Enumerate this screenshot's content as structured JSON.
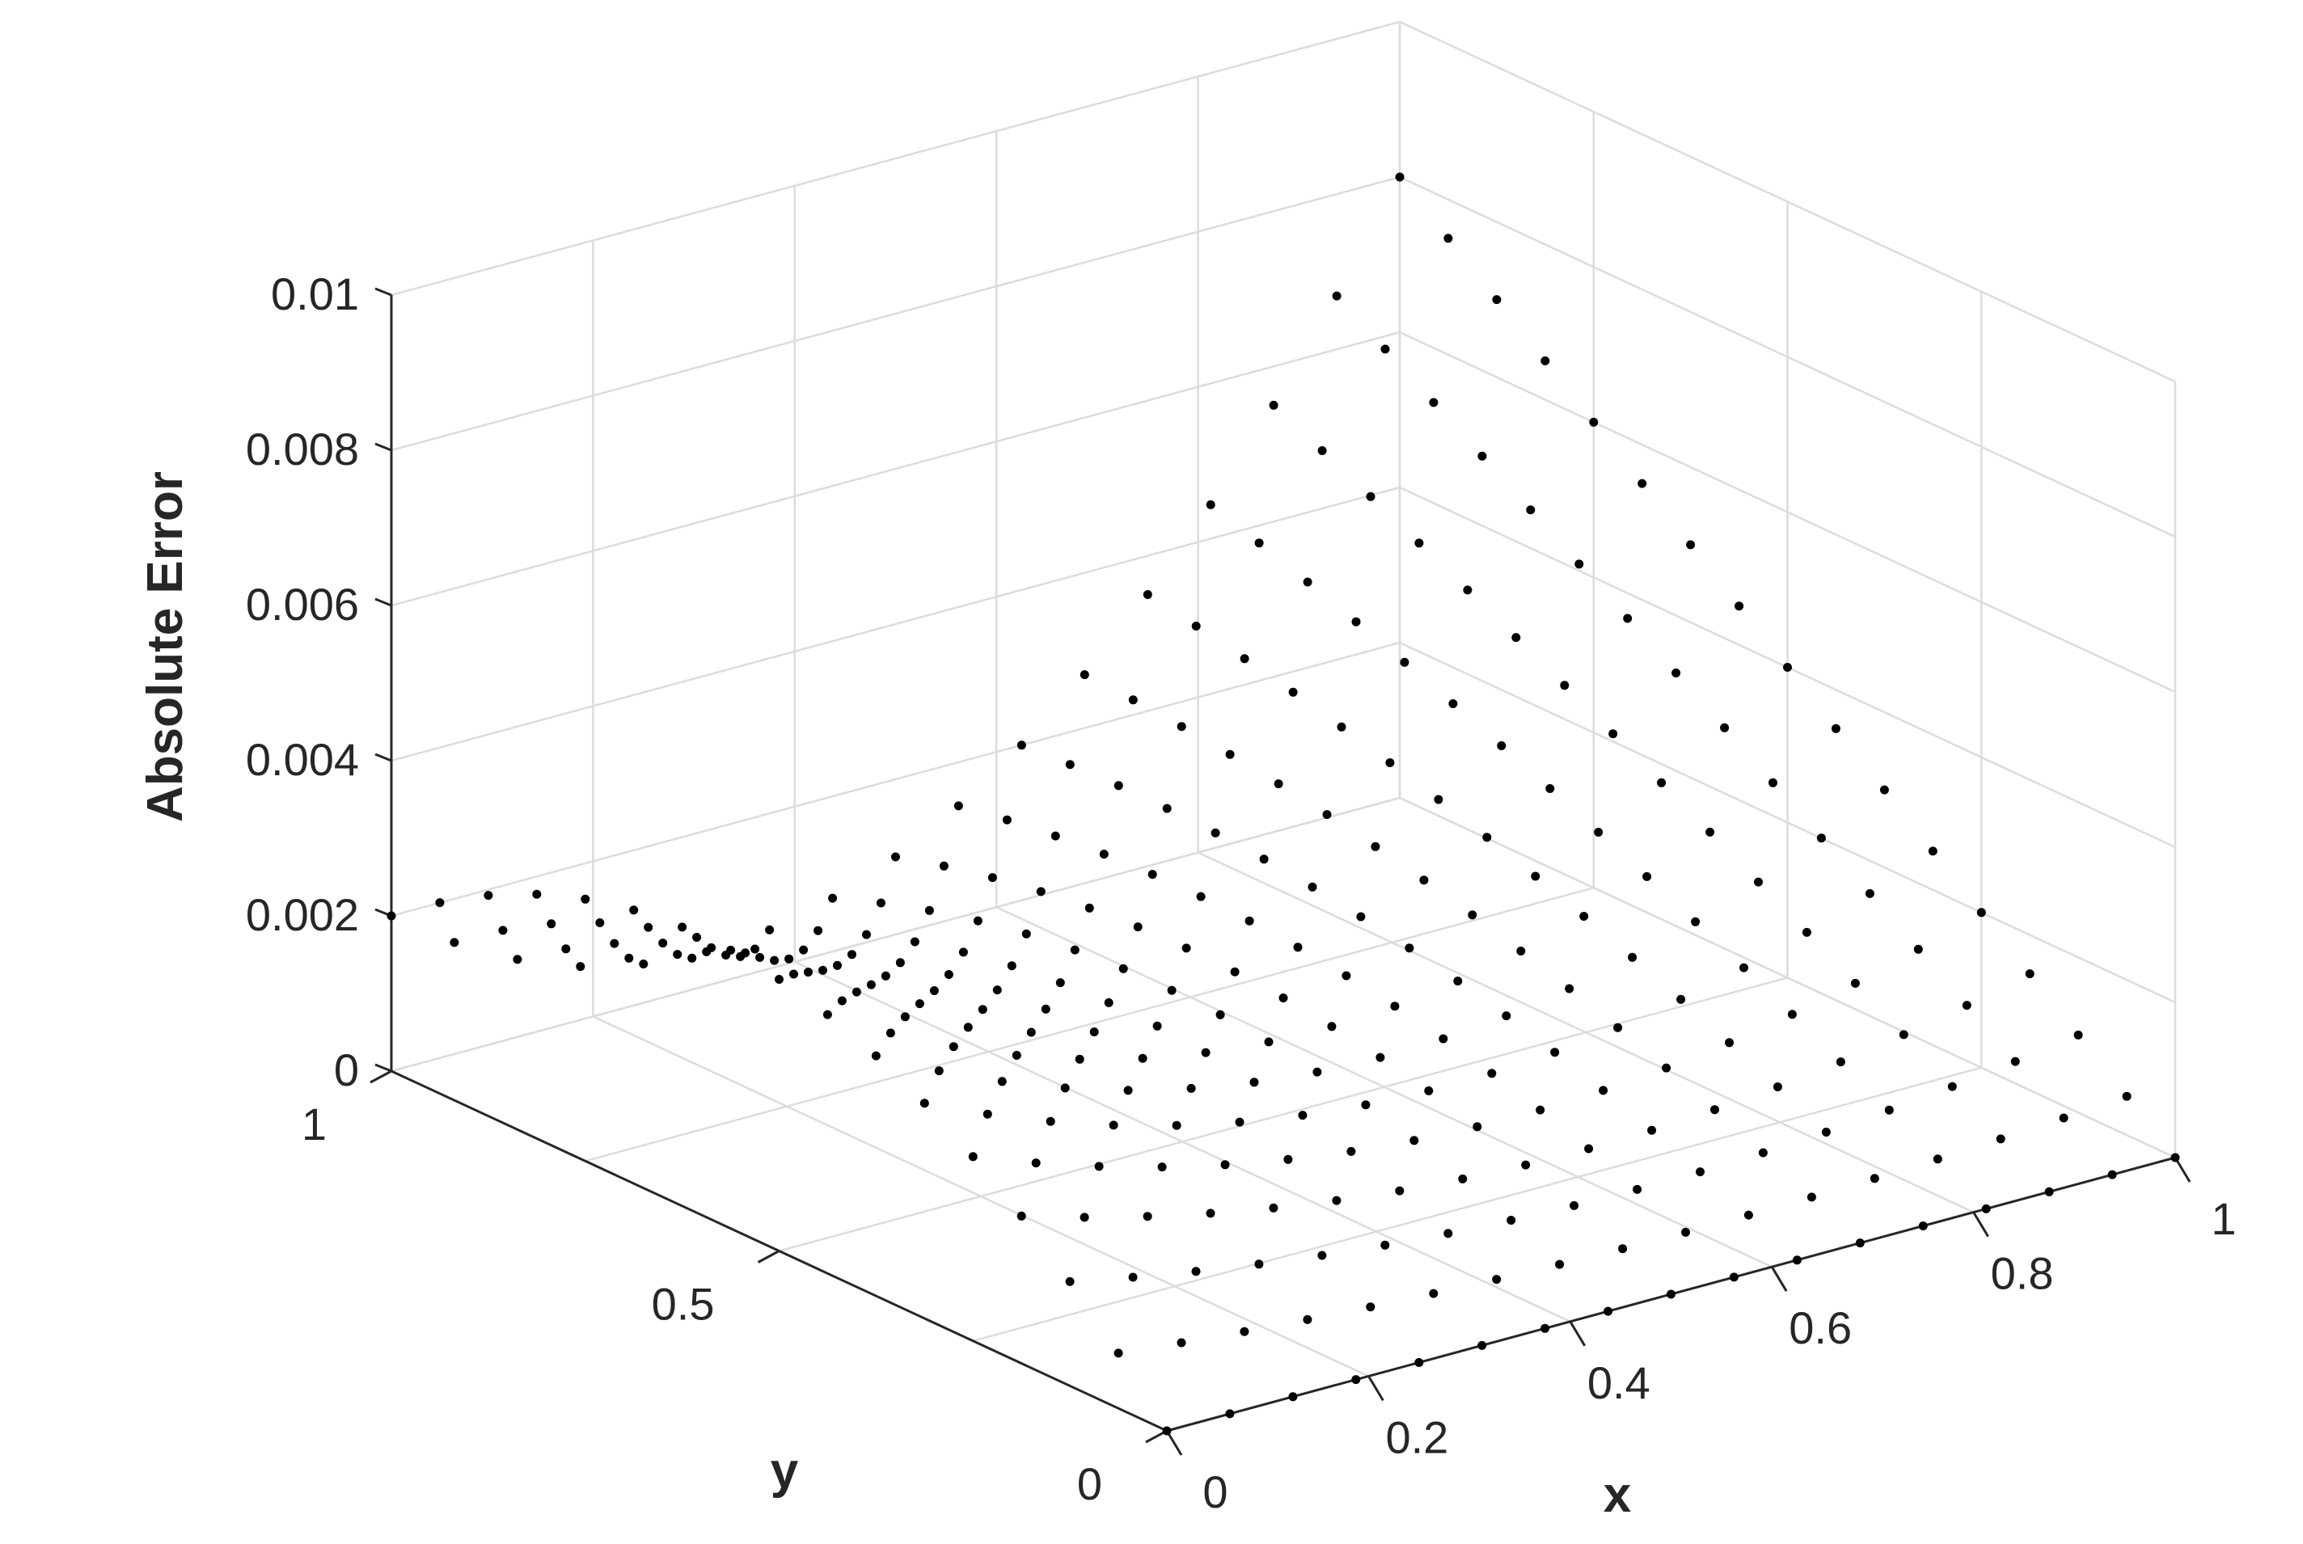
{
  "chart_data": {
    "type": "scatter",
    "projection": "3d",
    "title": "",
    "xlabel": "x",
    "ylabel": "y",
    "zlabel": "Absolute Error",
    "xlim": [
      0,
      1
    ],
    "ylim": [
      0,
      1
    ],
    "zlim": [
      0,
      0.01
    ],
    "grid": true,
    "x_ticks": [
      "0",
      "0.2",
      "0.4",
      "0.6",
      "0.8",
      "1"
    ],
    "y_ticks": [
      "0",
      "0.5",
      "1"
    ],
    "z_ticks": [
      "0",
      "0.002",
      "0.004",
      "0.006",
      "0.008",
      "0.01"
    ],
    "marker_color": "#000000",
    "series": [
      {
        "values": [
          {
            "x": 0,
            "y": 0,
            "z": 0.0
          },
          {
            "x": 0,
            "y": 0.5,
            "z": 0.0035
          },
          {
            "x": 0,
            "y": 1,
            "z": 0.002
          },
          {
            "x": 0.5,
            "y": 0,
            "z": 0.0
          },
          {
            "x": 0.5,
            "y": 0.5,
            "z": 0.0015
          },
          {
            "x": 0.5,
            "y": 1,
            "z": 0.001
          },
          {
            "x": 1,
            "y": 0,
            "z": 0.0
          },
          {
            "x": 1,
            "y": 0.5,
            "z": 0.004
          },
          {
            "x": 1,
            "y": 1,
            "z": 0.008
          }
        ]
      }
    ]
  }
}
